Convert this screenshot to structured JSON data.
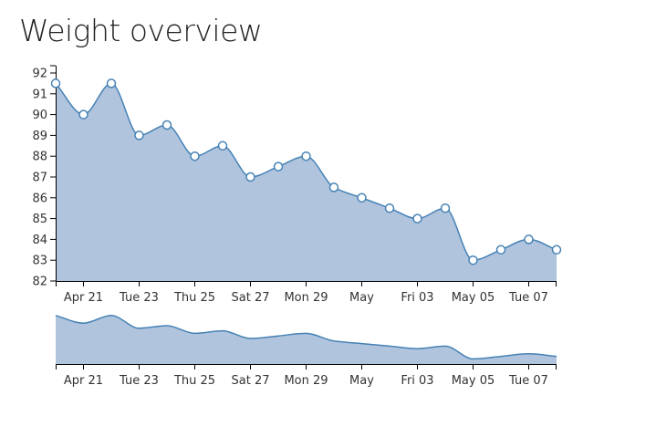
{
  "page": {
    "title": "Weight overview"
  },
  "colors": {
    "line": "#4682b4",
    "area": "#b0c4de",
    "point_fill": "#ffffff",
    "axis": "#000000"
  },
  "chart_data": {
    "type": "area",
    "title": "Weight overview",
    "xlabel": "",
    "ylabel": "",
    "x": [
      "2013-04-20",
      "2013-04-21",
      "2013-04-22",
      "2013-04-23",
      "2013-04-24",
      "2013-04-25",
      "2013-04-26",
      "2013-04-27",
      "2013-04-28",
      "2013-04-29",
      "2013-04-30",
      "2013-05-01",
      "2013-05-02",
      "2013-05-03",
      "2013-05-04",
      "2013-05-05",
      "2013-05-06",
      "2013-05-07",
      "2013-05-08"
    ],
    "series": [
      {
        "values": [
          91.5,
          90.0,
          91.5,
          89.0,
          89.5,
          88.0,
          88.5,
          87.0,
          87.5,
          88.0,
          86.5,
          86.0,
          85.5,
          85.0,
          85.5,
          83.0,
          83.5,
          84.0,
          83.5
        ]
      }
    ],
    "ylim": [
      82,
      92
    ],
    "yticks": [
      "82",
      "83",
      "84",
      "85",
      "86",
      "87",
      "88",
      "89",
      "90",
      "91",
      "92"
    ],
    "xticks": [
      {
        "date": "2013-04-21",
        "label": "Apr 21"
      },
      {
        "date": "2013-04-23",
        "label": "Tue 23"
      },
      {
        "date": "2013-04-25",
        "label": "Thu 25"
      },
      {
        "date": "2013-04-27",
        "label": "Sat 27"
      },
      {
        "date": "2013-04-29",
        "label": "Mon 29"
      },
      {
        "date": "2013-05-01",
        "label": "May"
      },
      {
        "date": "2013-05-03",
        "label": "Fri 03"
      },
      {
        "date": "2013-05-05",
        "label": "May 05"
      },
      {
        "date": "2013-05-07",
        "label": "Tue 07"
      }
    ],
    "overview": {
      "type": "area",
      "ylim": [
        82,
        92
      ],
      "description_shown": "context brush chart of the same series"
    },
    "grid": false,
    "legend": "none"
  }
}
